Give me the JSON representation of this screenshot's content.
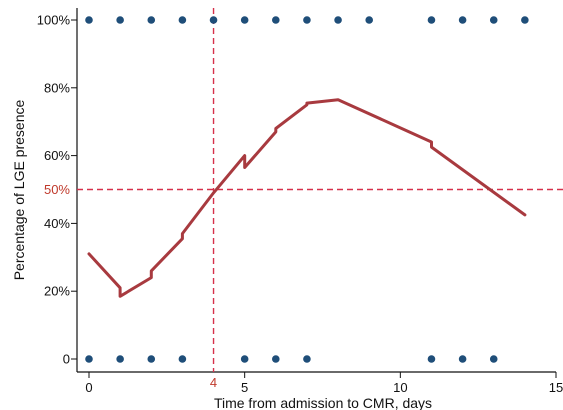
{
  "chart_data": {
    "type": "line",
    "title": "",
    "xlabel": "Time from admission to CMR, days",
    "ylabel": "Percentage of LGE presence",
    "xlim": [
      0,
      15
    ],
    "ylim": [
      0,
      100
    ],
    "x_ticks": [
      0,
      5,
      10,
      15
    ],
    "x_tick_labels": [
      "0",
      "5",
      "10",
      "15"
    ],
    "y_ticks": [
      0,
      20,
      40,
      60,
      80,
      100
    ],
    "y_tick_labels": [
      "0",
      "20%",
      "40%",
      "60%",
      "80%",
      "100%"
    ],
    "grid": false,
    "series": [
      {
        "kind": "line",
        "color": "#a83a3f",
        "points": [
          [
            0,
            31
          ],
          [
            1,
            21
          ],
          [
            1,
            18.5
          ],
          [
            2,
            24
          ],
          [
            2,
            26
          ],
          [
            3,
            35.5
          ],
          [
            3,
            37
          ],
          [
            4,
            49
          ],
          [
            5,
            60
          ],
          [
            5,
            56.5
          ],
          [
            6,
            67
          ],
          [
            6,
            68
          ],
          [
            7,
            75
          ],
          [
            7,
            75.5
          ],
          [
            8,
            76.5
          ],
          [
            11,
            64
          ],
          [
            11,
            62.5
          ],
          [
            14,
            42.5
          ]
        ]
      }
    ],
    "observations": {
      "color": "#1f4e79",
      "present_x": [
        0,
        1,
        2,
        3,
        4,
        5,
        6,
        7,
        8,
        9,
        11,
        12,
        13,
        14
      ],
      "present_y": 100,
      "absent_x": [
        0,
        1,
        2,
        3,
        5,
        6,
        7,
        11,
        12,
        13
      ],
      "absent_y": 0
    },
    "reference_lines": {
      "color": "#d6304a",
      "x": 4,
      "x_label": "4",
      "y": 50,
      "y_label": "50%"
    }
  }
}
